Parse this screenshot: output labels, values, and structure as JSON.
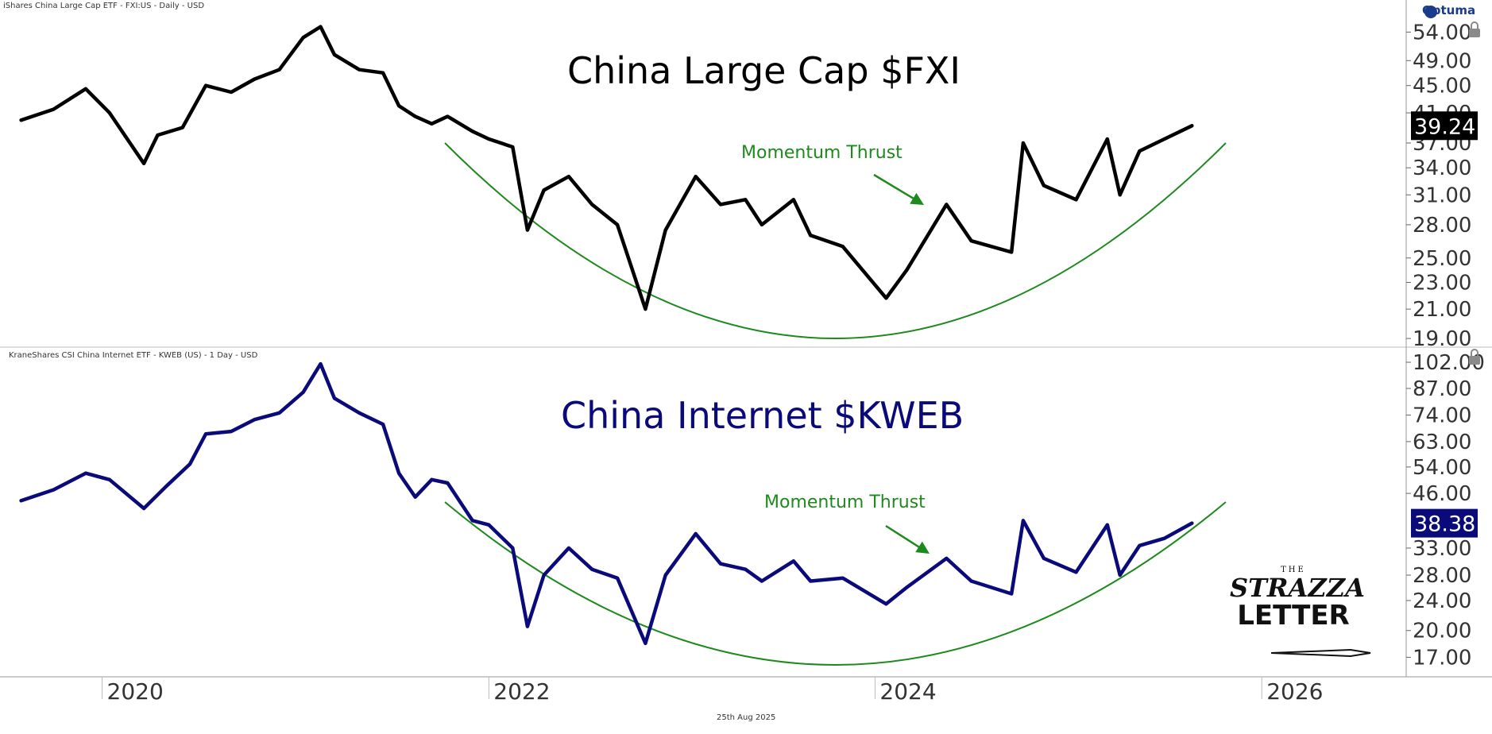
{
  "header": {
    "top_source": "iShares China Large Cap ETF - FXI:US - Daily - USD",
    "bottom_source": "KraneShares CSI China Internet ETF - KWEB (US) - 1 Day - USD",
    "brand": "Optuma",
    "footer_date": "25th Aug 2025"
  },
  "logo": {
    "line1": "THE",
    "line2": "STRAZZA",
    "line3": "LETTER"
  },
  "colors": {
    "fxi": "#000000",
    "kweb": "#0a0a7a",
    "annotation": "#1e8a1e",
    "axis": "#333333"
  },
  "chart_data": [
    {
      "type": "line",
      "title": "China Large Cap $FXI",
      "annotation": "Momentum Thrust",
      "scale": "log",
      "last_value": "39.24",
      "y_ticks": [
        "54.00",
        "49.00",
        "45.00",
        "41.00",
        "37.00",
        "34.00",
        "31.00",
        "28.00",
        "25.00",
        "23.00",
        "21.00",
        "19.00"
      ],
      "ylim": [
        18.8,
        58
      ],
      "series": [
        {
          "points": [
            [
              "2019-08-01",
              40.0
            ],
            [
              "2019-10-01",
              41.5
            ],
            [
              "2019-12-01",
              44.5
            ],
            [
              "2020-01-15",
              41.0
            ],
            [
              "2020-03-20",
              34.5
            ],
            [
              "2020-04-15",
              38.0
            ],
            [
              "2020-06-01",
              39.0
            ],
            [
              "2020-07-15",
              45.0
            ],
            [
              "2020-09-01",
              44.0
            ],
            [
              "2020-10-15",
              46.0
            ],
            [
              "2020-12-01",
              47.5
            ],
            [
              "2021-01-15",
              53.0
            ],
            [
              "2021-02-17",
              55.0
            ],
            [
              "2021-03-15",
              50.0
            ],
            [
              "2021-05-01",
              47.5
            ],
            [
              "2021-06-15",
              47.0
            ],
            [
              "2021-07-15",
              42.0
            ],
            [
              "2021-08-15",
              40.5
            ],
            [
              "2021-09-15",
              39.5
            ],
            [
              "2021-10-15",
              40.5
            ],
            [
              "2021-12-01",
              38.5
            ],
            [
              "2022-01-01",
              37.5
            ],
            [
              "2022-02-15",
              36.5
            ],
            [
              "2022-03-15",
              27.5
            ],
            [
              "2022-04-15",
              31.5
            ],
            [
              "2022-06-01",
              33.0
            ],
            [
              "2022-07-15",
              30.0
            ],
            [
              "2022-09-01",
              28.0
            ],
            [
              "2022-10-24",
              21.0
            ],
            [
              "2022-12-01",
              27.5
            ],
            [
              "2023-01-27",
              33.0
            ],
            [
              "2023-03-15",
              30.0
            ],
            [
              "2023-05-01",
              30.5
            ],
            [
              "2023-06-01",
              28.0
            ],
            [
              "2023-07-31",
              30.5
            ],
            [
              "2023-09-01",
              27.0
            ],
            [
              "2023-11-01",
              26.0
            ],
            [
              "2024-01-22",
              21.8
            ],
            [
              "2024-03-01",
              24.0
            ],
            [
              "2024-05-15",
              30.0
            ],
            [
              "2024-07-01",
              26.5
            ],
            [
              "2024-09-15",
              25.5
            ],
            [
              "2024-10-07",
              37.0
            ],
            [
              "2024-11-15",
              32.0
            ],
            [
              "2025-01-15",
              30.5
            ],
            [
              "2025-03-15",
              37.5
            ],
            [
              "2025-04-08",
              31.0
            ],
            [
              "2025-05-15",
              36.0
            ],
            [
              "2025-07-01",
              37.5
            ],
            [
              "2025-08-22",
              39.24
            ]
          ]
        }
      ]
    },
    {
      "type": "line",
      "title": "China Internet $KWEB",
      "annotation": "Momentum Thrust",
      "scale": "log",
      "last_value": "38.38",
      "y_ticks": [
        "102.00",
        "87.00",
        "74.00",
        "63.00",
        "54.00",
        "46.00",
        "33.00",
        "28.00",
        "24.00",
        "20.00",
        "17.00"
      ],
      "ylim": [
        16.0,
        104
      ],
      "series": [
        {
          "points": [
            [
              "2019-08-01",
              44.0
            ],
            [
              "2019-10-01",
              47.0
            ],
            [
              "2019-12-01",
              52.0
            ],
            [
              "2020-01-15",
              50.0
            ],
            [
              "2020-03-20",
              42.0
            ],
            [
              "2020-05-01",
              48.0
            ],
            [
              "2020-06-15",
              55.0
            ],
            [
              "2020-07-15",
              66.0
            ],
            [
              "2020-09-01",
              67.0
            ],
            [
              "2020-10-15",
              72.0
            ],
            [
              "2020-12-01",
              75.0
            ],
            [
              "2021-01-15",
              85.0
            ],
            [
              "2021-02-17",
              101.0
            ],
            [
              "2021-03-15",
              82.0
            ],
            [
              "2021-05-01",
              75.0
            ],
            [
              "2021-06-15",
              70.0
            ],
            [
              "2021-07-15",
              52.0
            ],
            [
              "2021-08-15",
              45.0
            ],
            [
              "2021-09-15",
              50.0
            ],
            [
              "2021-10-15",
              49.0
            ],
            [
              "2021-12-01",
              39.0
            ],
            [
              "2022-01-01",
              38.0
            ],
            [
              "2022-02-15",
              33.0
            ],
            [
              "2022-03-15",
              20.5
            ],
            [
              "2022-04-15",
              28.0
            ],
            [
              "2022-06-01",
              33.0
            ],
            [
              "2022-07-15",
              29.0
            ],
            [
              "2022-09-01",
              27.5
            ],
            [
              "2022-10-24",
              18.5
            ],
            [
              "2022-12-01",
              28.0
            ],
            [
              "2023-01-27",
              36.0
            ],
            [
              "2023-03-15",
              30.0
            ],
            [
              "2023-05-01",
              29.0
            ],
            [
              "2023-06-01",
              27.0
            ],
            [
              "2023-07-31",
              30.5
            ],
            [
              "2023-09-01",
              27.0
            ],
            [
              "2023-11-01",
              27.5
            ],
            [
              "2024-01-22",
              23.5
            ],
            [
              "2024-03-01",
              26.0
            ],
            [
              "2024-05-15",
              31.0
            ],
            [
              "2024-07-01",
              27.0
            ],
            [
              "2024-09-15",
              25.0
            ],
            [
              "2024-10-07",
              39.0
            ],
            [
              "2024-11-15",
              31.0
            ],
            [
              "2025-01-15",
              28.5
            ],
            [
              "2025-03-15",
              38.0
            ],
            [
              "2025-04-08",
              28.0
            ],
            [
              "2025-05-15",
              33.5
            ],
            [
              "2025-07-01",
              35.0
            ],
            [
              "2025-08-22",
              38.38
            ]
          ]
        }
      ]
    }
  ],
  "x_axis": {
    "ticks": [
      "2020",
      "2022",
      "2024",
      "2026"
    ],
    "range": [
      "2019-07-01",
      "2026-10-01"
    ]
  }
}
